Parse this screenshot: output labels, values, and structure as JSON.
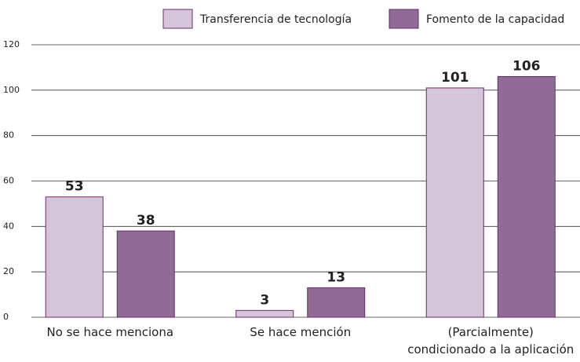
{
  "chart_data": {
    "type": "bar",
    "categories": [
      "No se hace menciona",
      "Se hace mención",
      "(Parcialmente)\ncondicionado a la aplicación"
    ],
    "series": [
      {
        "name": "Transferencia de tecnología",
        "color": "#d5c5da",
        "values": [
          53,
          3,
          101
        ]
      },
      {
        "name": "Fomento de la capacidad",
        "color": "#8f6b96",
        "values": [
          38,
          13,
          106
        ]
      }
    ],
    "ylim": [
      0,
      120
    ],
    "yticks": [
      0,
      20,
      40,
      60,
      80,
      100,
      120
    ],
    "grid": true
  }
}
